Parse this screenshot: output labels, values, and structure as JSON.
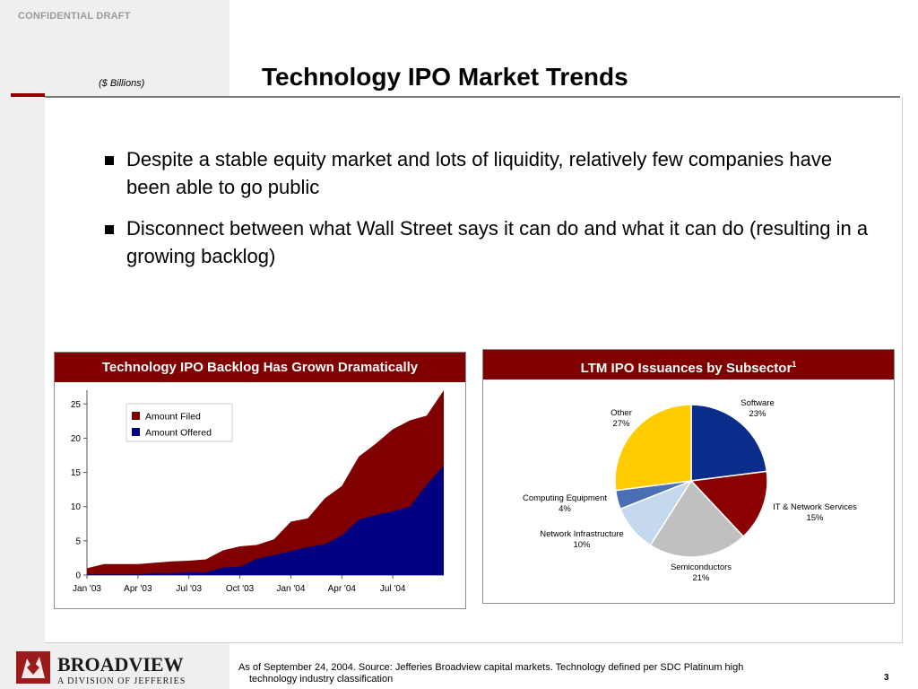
{
  "header": {
    "confidential": "CONFIDENTIAL DRAFT",
    "units": "($ Billions)",
    "title": "Technology IPO Market Trends"
  },
  "bullets": [
    "Despite a stable equity market and lots of liquidity, relatively few companies have been able to go public",
    "Disconnect between what Wall Street says it can do and what it can do (resulting in a growing backlog)"
  ],
  "left_panel": {
    "title": "Technology IPO Backlog Has Grown Dramatically"
  },
  "right_panel": {
    "title": "LTM IPO Issuances by Subsector",
    "title_sup": "1"
  },
  "colors": {
    "maroon": "#800000",
    "navy": "#000080",
    "software": "#0a2d8c",
    "it_network": "#8b0000",
    "semiconductors": "#c0c0c0",
    "network_infra": "#c5d9ee",
    "computing_equipment": "#4a6fb5",
    "other": "#ffcc00"
  },
  "chart_data": [
    {
      "type": "area",
      "title": "Technology IPO Backlog Has Grown Dramatically",
      "ylim": [
        0,
        27
      ],
      "yticks": [
        0,
        5,
        10,
        15,
        20,
        25
      ],
      "xtick_labels": [
        "Jan '03",
        "Apr '03",
        "Jul '03",
        "Oct '03",
        "Jan '04",
        "Apr '04",
        "Jul '04"
      ],
      "xtick_index": [
        0,
        3,
        6,
        9,
        12,
        15,
        18
      ],
      "legend": {
        "placement": "top-left",
        "entries": [
          "Amount Filed",
          "Amount Offered"
        ]
      },
      "series": [
        {
          "name": "Amount Filed",
          "values": [
            1.0,
            1.6,
            1.6,
            1.6,
            1.8,
            2.0,
            2.1,
            2.3,
            3.6,
            4.2,
            4.4,
            5.2,
            7.8,
            8.3,
            11.2,
            13.0,
            17.3,
            19.2,
            21.3,
            22.6,
            23.3,
            27.0
          ]
        },
        {
          "name": "Amount Offered",
          "values": [
            0.1,
            0.1,
            0.1,
            0.1,
            0.3,
            0.3,
            0.4,
            0.4,
            1.1,
            1.2,
            2.4,
            2.9,
            3.5,
            4.1,
            4.5,
            5.8,
            8.1,
            8.8,
            9.3,
            10.0,
            13.2,
            16.0
          ]
        }
      ]
    },
    {
      "type": "pie",
      "title": "LTM IPO Issuances by Subsector",
      "slices": [
        {
          "label": "Software",
          "pct_label": "23%",
          "value": 23,
          "color_key": "software"
        },
        {
          "label": "IT & Network Services",
          "pct_label": "15%",
          "value": 15,
          "color_key": "it_network"
        },
        {
          "label": "Semiconductors",
          "pct_label": "21%",
          "value": 21,
          "color_key": "semiconductors"
        },
        {
          "label": "Network Infrastructure",
          "pct_label": "10%",
          "value": 10,
          "color_key": "network_infra"
        },
        {
          "label": "Computing Equipment",
          "pct_label": "4%",
          "value": 4,
          "color_key": "computing_equipment"
        },
        {
          "label": "Other",
          "pct_label": "27%",
          "value": 27,
          "color_key": "other"
        }
      ]
    }
  ],
  "footer": {
    "logo_text": "BROADVIEW",
    "logo_sub": "A DIVISION OF JEFFERIES",
    "note_line1": "As of September 24, 2004. Source: Jefferies Broadview capital markets. Technology defined per SDC Platinum high",
    "note_line2": "technology industry classification",
    "page": "3"
  }
}
